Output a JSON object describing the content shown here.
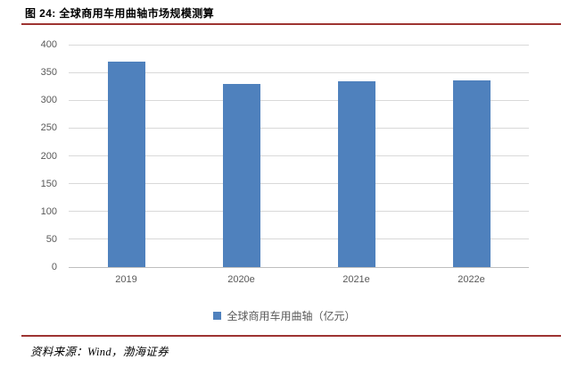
{
  "header": {
    "title": "图 24: 全球商用车用曲轴市场规模测算"
  },
  "chart_data": {
    "type": "bar",
    "title": "图 24: 全球商用车用曲轴市场规模测算",
    "categories": [
      "2019",
      "2020e",
      "2021e",
      "2022e"
    ],
    "values": [
      370,
      330,
      334,
      335
    ],
    "series_name": "全球商用车用曲轴（亿元）",
    "legend": "全球商用车用曲轴（亿元）",
    "xlabel": "",
    "ylabel": "",
    "ylim": [
      0,
      400
    ],
    "ytick_step": 50,
    "grid": true,
    "legend_position": "bottom",
    "bar_color": "#4f81bd"
  },
  "footer": {
    "source": "资料来源：Wind，渤海证券"
  },
  "colors": {
    "accent_red": "#9e3432",
    "bar_blue": "#4f81bd",
    "gridline": "#d9d9d9",
    "axis_text": "#595959"
  }
}
